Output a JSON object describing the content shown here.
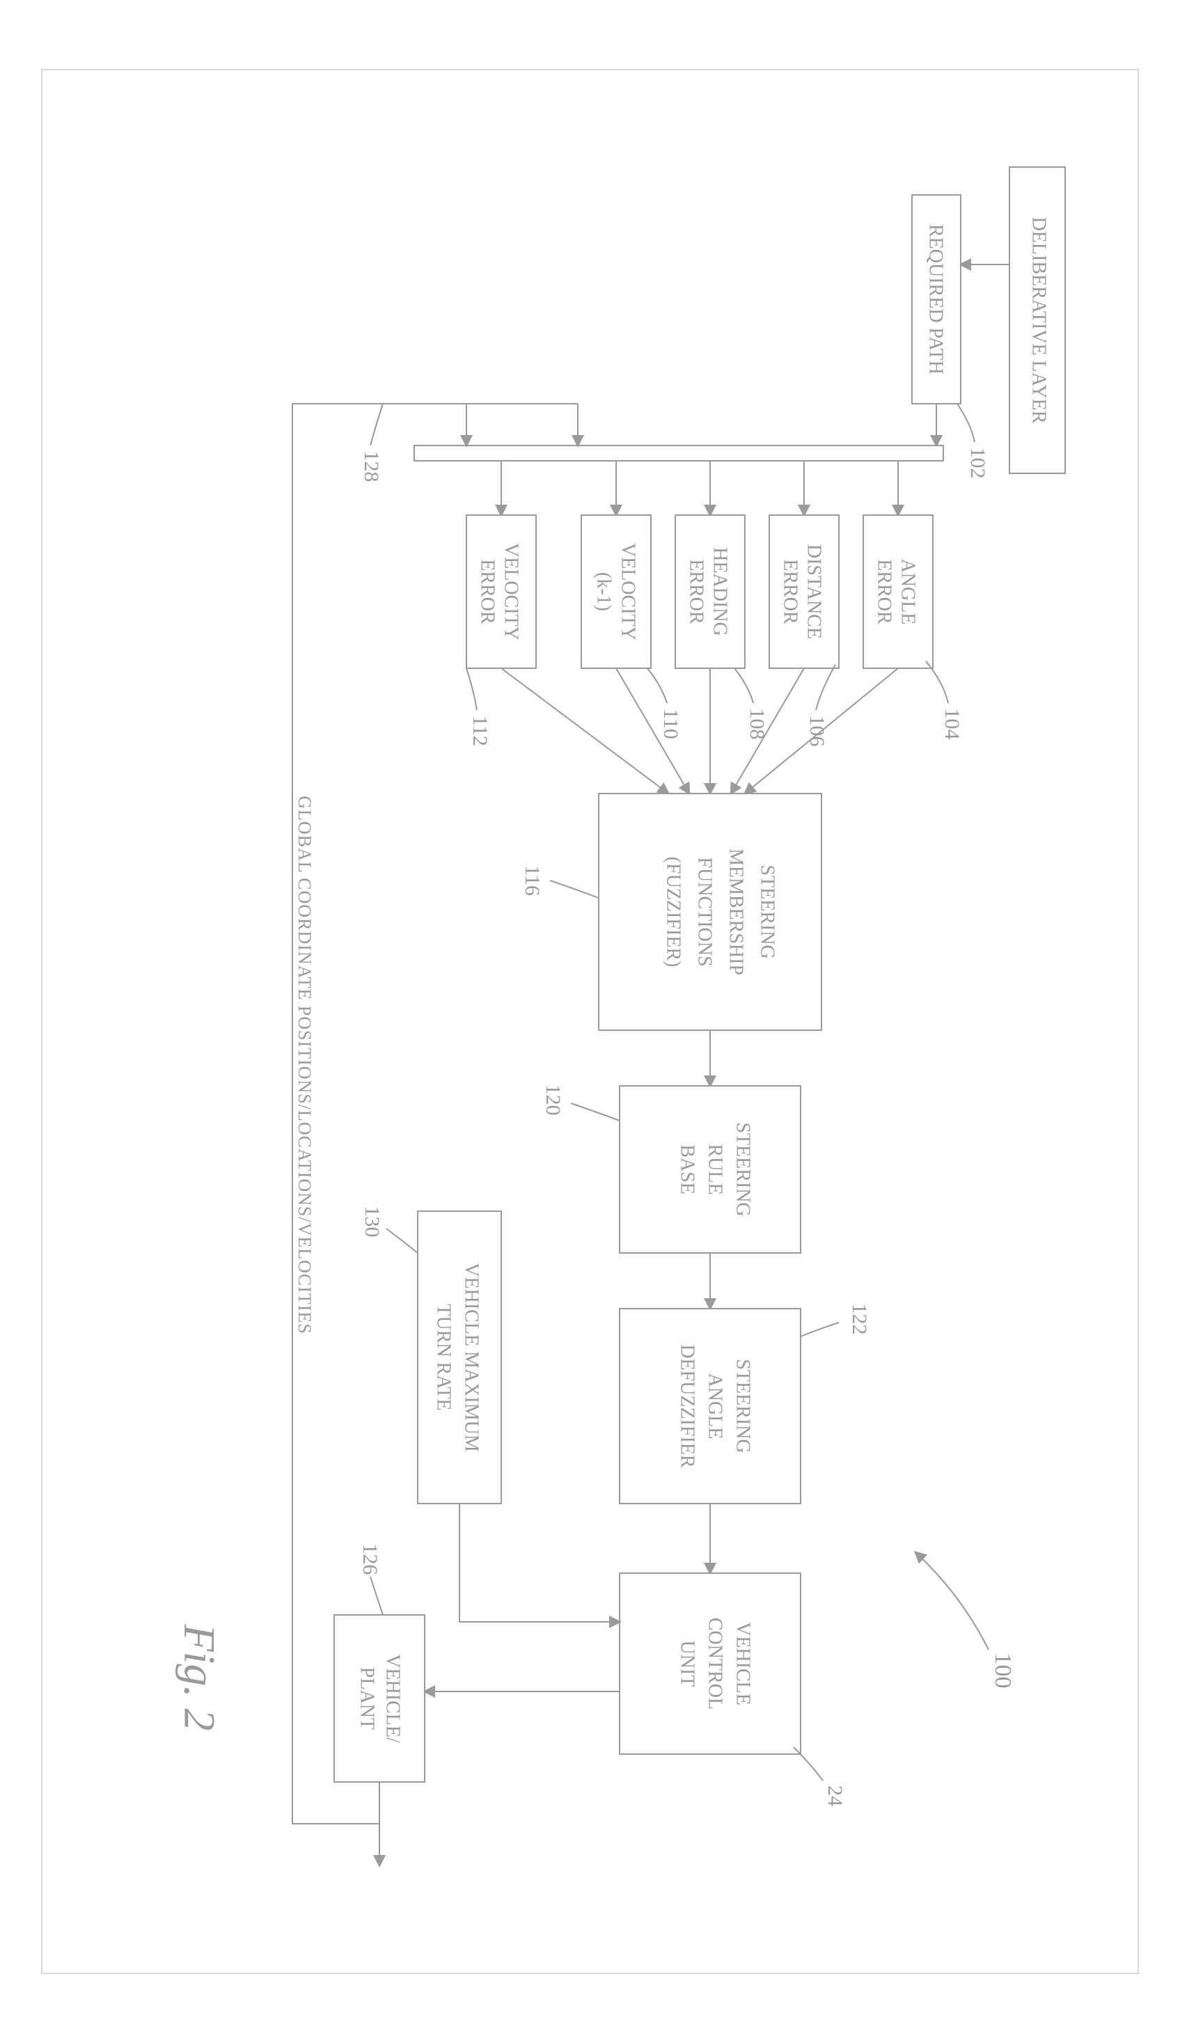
{
  "figure": {
    "caption": "Fig. 2",
    "system_ref": "100",
    "feedback_label": "GLOBAL COORDINATE POSITIONS/LOCATIONS/VELOCITIES",
    "colors": {
      "stroke": "#9a9a9a",
      "text": "#9a9a9a",
      "bg": "#ffffff"
    },
    "font": {
      "block_size": 28,
      "small_block_size": 24,
      "ref_size": 30,
      "caption_size": 56,
      "family": "Times New Roman"
    },
    "blocks": {
      "deliberative": {
        "label": "DELIBERATIVE LAYER"
      },
      "required_path": {
        "label": "REQUIRED PATH",
        "ref": "102"
      },
      "angle_error": {
        "label": "ANGLE ERROR",
        "ref": "104"
      },
      "distance_error": {
        "label": "DISTANCE ERROR",
        "ref": "106"
      },
      "heading_error": {
        "label": "HEADING ERROR",
        "ref": "108"
      },
      "velocity_k1": {
        "label1": "VELOCITY",
        "label2": "(k-1)",
        "ref": "110"
      },
      "velocity_error": {
        "label": "VELOCITY ERROR",
        "ref": "112"
      },
      "fuzzifier": {
        "l1": "STEERING",
        "l2": "MEMBERSHIP",
        "l3": "FUNCTIONS",
        "l4": "(FUZZIFIER)",
        "ref": "116"
      },
      "rule_base": {
        "l1": "STEERING",
        "l2": "RULE",
        "l3": "BASE",
        "ref": "120"
      },
      "defuzz": {
        "l1": "STEERING",
        "l2": "ANGLE",
        "l3": "DEFUZZIFIER",
        "ref": "122"
      },
      "vcu": {
        "l1": "VEHICLE",
        "l2": "CONTROL",
        "l3": "UNIT",
        "ref": "24"
      },
      "turn_rate": {
        "l1": "VEHICLE MAXIMUM",
        "l2": "TURN RATE",
        "ref": "130"
      },
      "plant": {
        "l1": "VEHICLE/",
        "l2": "PLANT",
        "ref": "126"
      },
      "feedback_ref": "128"
    }
  }
}
